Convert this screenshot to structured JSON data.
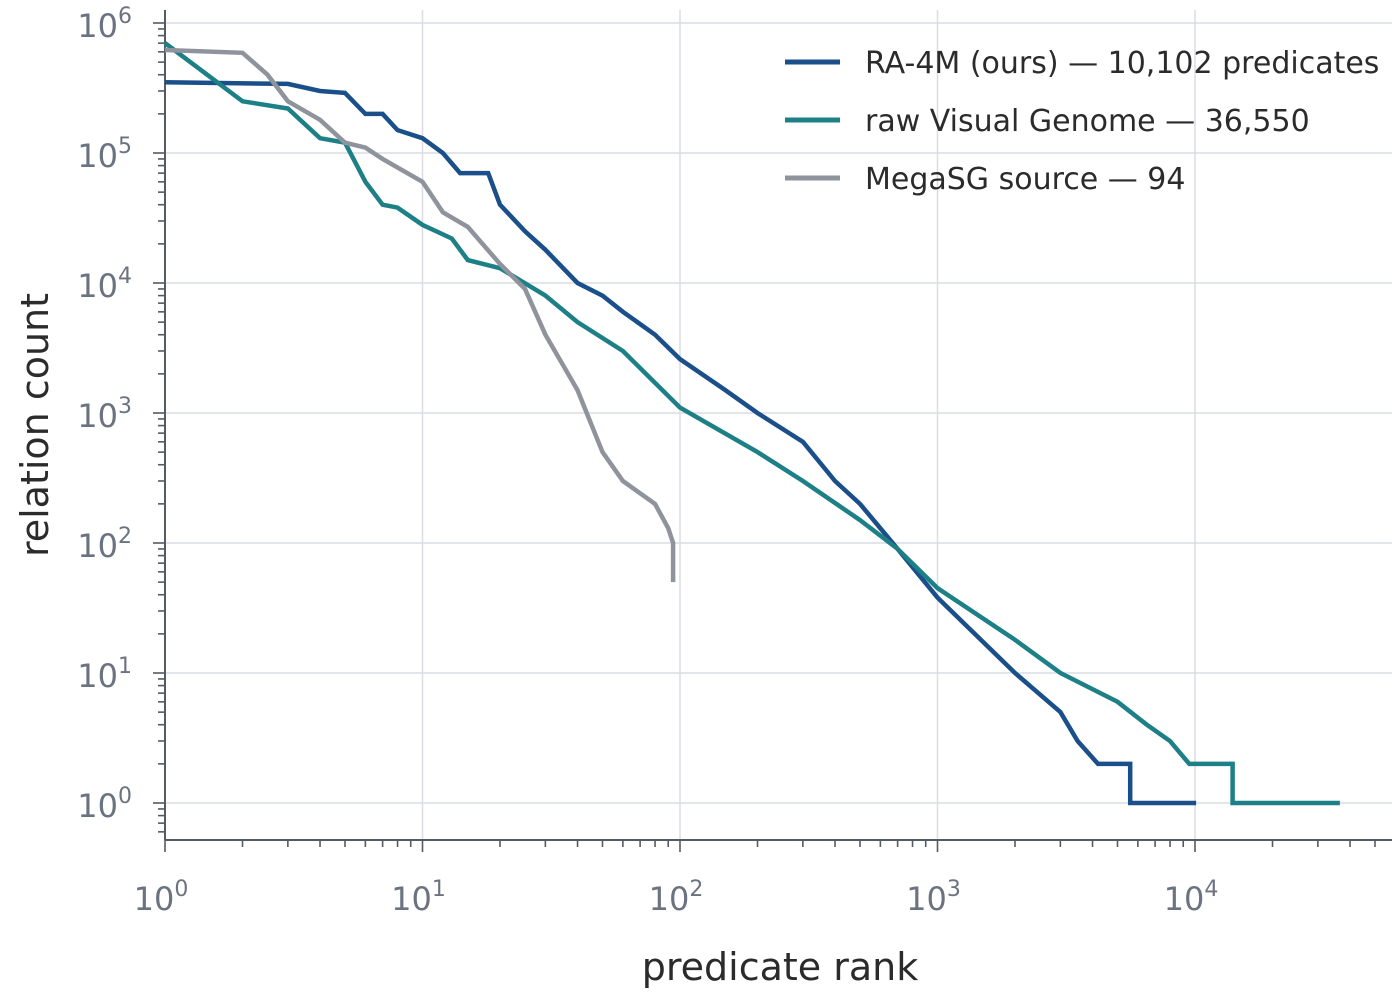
{
  "chart_data": {
    "type": "line",
    "xlabel": "predicate rank",
    "ylabel": "relation count",
    "xscale": "log",
    "yscale": "log",
    "xlim": [
      1,
      60000
    ],
    "ylim": [
      0.3,
      1500000
    ],
    "x_ticks": [
      {
        "base": "10",
        "exp": "0",
        "value": 1
      },
      {
        "base": "10",
        "exp": "1",
        "value": 10
      },
      {
        "base": "10",
        "exp": "2",
        "value": 100
      },
      {
        "base": "10",
        "exp": "3",
        "value": 1000
      },
      {
        "base": "10",
        "exp": "4",
        "value": 10000
      }
    ],
    "y_ticks": [
      {
        "base": "10",
        "exp": "0",
        "value": 1
      },
      {
        "base": "10",
        "exp": "1",
        "value": 10
      },
      {
        "base": "10",
        "exp": "2",
        "value": 100
      },
      {
        "base": "10",
        "exp": "3",
        "value": 1000
      },
      {
        "base": "10",
        "exp": "4",
        "value": 10000
      },
      {
        "base": "10",
        "exp": "5",
        "value": 100000
      },
      {
        "base": "10",
        "exp": "6",
        "value": 1000000
      }
    ],
    "grid": true,
    "legend_position": "top-right",
    "series": [
      {
        "name": "RA-4M (ours) — 10,102 predicates",
        "color": "#1a4f8a",
        "points": [
          [
            1,
            350000
          ],
          [
            3,
            340000
          ],
          [
            4,
            300000
          ],
          [
            5,
            290000
          ],
          [
            6,
            200000
          ],
          [
            7,
            200000
          ],
          [
            8,
            150000
          ],
          [
            10,
            130000
          ],
          [
            12,
            100000
          ],
          [
            14,
            70000
          ],
          [
            18,
            70000
          ],
          [
            20,
            40000
          ],
          [
            25,
            25000
          ],
          [
            30,
            18000
          ],
          [
            40,
            10000
          ],
          [
            50,
            8000
          ],
          [
            60,
            6000
          ],
          [
            80,
            4000
          ],
          [
            100,
            2600
          ],
          [
            150,
            1500
          ],
          [
            200,
            1000
          ],
          [
            300,
            600
          ],
          [
            400,
            300
          ],
          [
            500,
            200
          ],
          [
            700,
            90
          ],
          [
            1000,
            38
          ],
          [
            2000,
            10
          ],
          [
            3000,
            5
          ],
          [
            3500,
            3
          ],
          [
            4200,
            2
          ],
          [
            5600,
            2
          ],
          [
            5600,
            1
          ],
          [
            10102,
            1
          ]
        ]
      },
      {
        "name": "raw Visual Genome — 36,550",
        "color": "#1e8087",
        "points": [
          [
            1,
            700000
          ],
          [
            2,
            250000
          ],
          [
            3,
            220000
          ],
          [
            4,
            130000
          ],
          [
            5,
            120000
          ],
          [
            6,
            60000
          ],
          [
            7,
            40000
          ],
          [
            8,
            38000
          ],
          [
            10,
            28000
          ],
          [
            13,
            22000
          ],
          [
            15,
            15000
          ],
          [
            20,
            13000
          ],
          [
            30,
            8000
          ],
          [
            40,
            5000
          ],
          [
            60,
            3000
          ],
          [
            100,
            1100
          ],
          [
            200,
            500
          ],
          [
            300,
            300
          ],
          [
            500,
            150
          ],
          [
            700,
            90
          ],
          [
            1000,
            45
          ],
          [
            2000,
            18
          ],
          [
            3000,
            10
          ],
          [
            5000,
            6
          ],
          [
            6500,
            4
          ],
          [
            8000,
            3
          ],
          [
            9500,
            2
          ],
          [
            14000,
            2
          ],
          [
            14000,
            1
          ],
          [
            36550,
            1
          ]
        ]
      },
      {
        "name": "MegaSG source — 94",
        "color": "#8f939b",
        "points": [
          [
            1,
            620000
          ],
          [
            2,
            590000
          ],
          [
            2.5,
            400000
          ],
          [
            3,
            250000
          ],
          [
            4,
            180000
          ],
          [
            5,
            120000
          ],
          [
            6,
            110000
          ],
          [
            7,
            90000
          ],
          [
            10,
            60000
          ],
          [
            12,
            35000
          ],
          [
            15,
            27000
          ],
          [
            20,
            14000
          ],
          [
            25,
            9000
          ],
          [
            30,
            4000
          ],
          [
            40,
            1500
          ],
          [
            50,
            500
          ],
          [
            60,
            300
          ],
          [
            80,
            200
          ],
          [
            90,
            130
          ],
          [
            94,
            100
          ],
          [
            94,
            50
          ]
        ]
      }
    ]
  }
}
